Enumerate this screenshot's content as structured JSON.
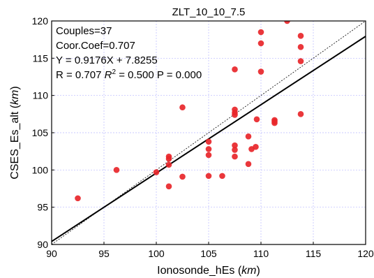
{
  "chart_data": {
    "type": "scatter",
    "title": "ZLT_10_10_7.5",
    "xlabel": "Ionosonde_hEs",
    "xlabel_unit": "km",
    "ylabel": "CSES_Es_alt",
    "ylabel_unit": "km",
    "xlim": [
      90,
      120
    ],
    "ylim": [
      90,
      120
    ],
    "x_ticks": [
      "90",
      "95",
      "100",
      "105",
      "110",
      "115",
      "120"
    ],
    "y_ticks": [
      "90",
      "95",
      "100",
      "105",
      "110",
      "115",
      "120"
    ],
    "grid": true,
    "annotations": {
      "couples": "Couples=37",
      "coor_coef": "Coor.Coef=0.707",
      "fit_equation": "Y = 0.9176X + 7.8255",
      "r_prefix": "R = 0.707 ",
      "r2_symbol": "R",
      "r2_exp": "2",
      "r_suffix": " = 0.500 P = 0.000"
    },
    "fit_line": {
      "slope": 0.9176,
      "intercept": 7.8255,
      "color": "#000000",
      "style": "solid"
    },
    "reference_line": {
      "slope": 1,
      "intercept": 0,
      "color": "#000000",
      "style": "dotted"
    },
    "marker_color": "#e8262a",
    "points": [
      {
        "x": 92.5,
        "y": 96.2
      },
      {
        "x": 96.2,
        "y": 100.0
      },
      {
        "x": 100.0,
        "y": 99.7
      },
      {
        "x": 101.2,
        "y": 101.8
      },
      {
        "x": 101.2,
        "y": 101.5
      },
      {
        "x": 101.2,
        "y": 100.7
      },
      {
        "x": 101.2,
        "y": 97.8
      },
      {
        "x": 102.5,
        "y": 108.4
      },
      {
        "x": 102.5,
        "y": 99.1
      },
      {
        "x": 105.0,
        "y": 103.8
      },
      {
        "x": 105.0,
        "y": 102.8
      },
      {
        "x": 105.0,
        "y": 102.0
      },
      {
        "x": 105.0,
        "y": 99.2
      },
      {
        "x": 106.3,
        "y": 99.2
      },
      {
        "x": 107.5,
        "y": 113.5
      },
      {
        "x": 107.5,
        "y": 108.1
      },
      {
        "x": 107.5,
        "y": 107.7
      },
      {
        "x": 107.5,
        "y": 107.4
      },
      {
        "x": 107.5,
        "y": 103.3
      },
      {
        "x": 107.5,
        "y": 102.7
      },
      {
        "x": 107.5,
        "y": 101.8
      },
      {
        "x": 108.8,
        "y": 104.5
      },
      {
        "x": 108.8,
        "y": 100.8
      },
      {
        "x": 109.1,
        "y": 102.8
      },
      {
        "x": 109.5,
        "y": 103.1
      },
      {
        "x": 109.6,
        "y": 106.8
      },
      {
        "x": 110.0,
        "y": 118.5
      },
      {
        "x": 110.0,
        "y": 117.0
      },
      {
        "x": 110.0,
        "y": 113.2
      },
      {
        "x": 111.3,
        "y": 106.7
      },
      {
        "x": 111.3,
        "y": 106.5
      },
      {
        "x": 111.3,
        "y": 106.3
      },
      {
        "x": 112.5,
        "y": 120.0
      },
      {
        "x": 113.8,
        "y": 118.0
      },
      {
        "x": 113.8,
        "y": 116.5
      },
      {
        "x": 113.8,
        "y": 114.6
      },
      {
        "x": 113.8,
        "y": 107.5
      }
    ]
  }
}
